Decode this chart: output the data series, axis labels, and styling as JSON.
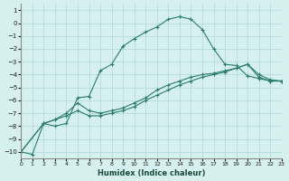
{
  "xlabel": "Humidex (Indice chaleur)",
  "bg_color": "#d6f0f0",
  "line_color": "#2a7d6b",
  "grid_color": "#b0d8d8",
  "xlim": [
    0,
    23
  ],
  "ylim": [
    -10.5,
    1.5
  ],
  "yticks": [
    1,
    0,
    -1,
    -2,
    -3,
    -4,
    -5,
    -6,
    -7,
    -8,
    -9,
    -10
  ],
  "xticks": [
    0,
    1,
    2,
    3,
    4,
    5,
    6,
    7,
    8,
    9,
    10,
    11,
    12,
    13,
    14,
    15,
    16,
    17,
    18,
    19,
    20,
    21,
    22,
    23
  ],
  "line1_x": [
    0,
    1,
    2,
    3,
    4,
    5,
    6,
    7,
    8,
    9,
    10,
    11,
    12,
    13,
    14,
    15,
    16,
    17,
    18,
    19,
    20,
    21,
    22,
    23
  ],
  "line1_y": [
    -10.0,
    -10.2,
    -7.8,
    -8.0,
    -7.8,
    -5.8,
    -5.7,
    -3.7,
    -3.2,
    -1.8,
    -1.2,
    -0.7,
    -0.3,
    0.3,
    0.5,
    0.3,
    -0.5,
    -2.0,
    -3.2,
    -3.3,
    -4.1,
    -4.3,
    -4.5,
    -4.5
  ],
  "line2_x": [
    0,
    2,
    3,
    4,
    5,
    6,
    7,
    8,
    9,
    10,
    11,
    12,
    13,
    14,
    15,
    16,
    17,
    18,
    19,
    20,
    21,
    22,
    23
  ],
  "line2_y": [
    -10.0,
    -7.8,
    -7.5,
    -7.2,
    -6.8,
    -7.2,
    -7.2,
    -7.0,
    -6.8,
    -6.5,
    -6.0,
    -5.6,
    -5.2,
    -4.8,
    -4.5,
    -4.2,
    -4.0,
    -3.8,
    -3.5,
    -3.2,
    -4.2,
    -4.5,
    -4.5
  ],
  "line3_x": [
    0,
    2,
    3,
    4,
    5,
    6,
    7,
    8,
    9,
    10,
    11,
    12,
    13,
    14,
    15,
    16,
    17,
    18,
    19,
    20,
    21,
    22,
    23
  ],
  "line3_y": [
    -10.0,
    -7.8,
    -7.5,
    -7.0,
    -6.2,
    -6.8,
    -7.0,
    -6.8,
    -6.6,
    -6.2,
    -5.8,
    -5.2,
    -4.8,
    -4.5,
    -4.2,
    -4.0,
    -3.9,
    -3.7,
    -3.5,
    -3.2,
    -4.0,
    -4.4,
    -4.5
  ]
}
